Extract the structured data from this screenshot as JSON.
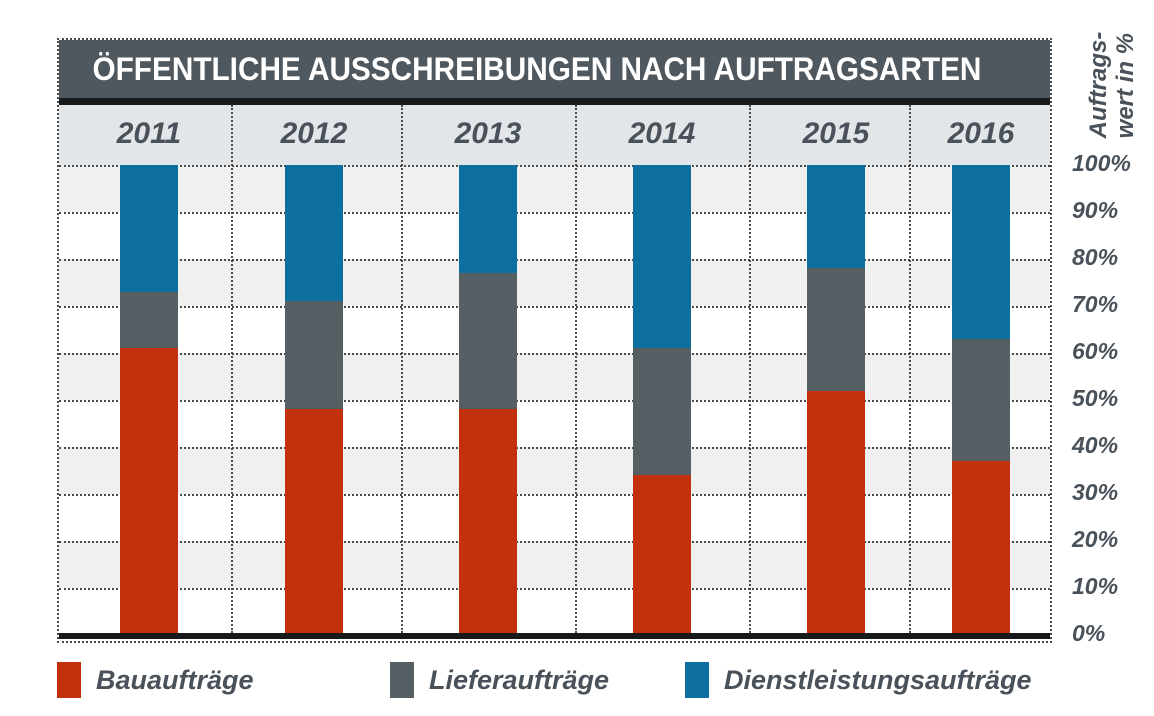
{
  "chart_data": {
    "type": "bar",
    "stacked": true,
    "title": "ÖFFENTLICHE AUSSCHREIBUNGEN NACH AUFTRAGSARTEN",
    "categories": [
      "2011",
      "2012",
      "2013",
      "2014",
      "2015",
      "2016"
    ],
    "series": [
      {
        "name": "Bauaufträge",
        "color": "#c1310e",
        "values": [
          61,
          48,
          48,
          34,
          52,
          37
        ]
      },
      {
        "name": "Lieferaufträge",
        "color": "#555f64",
        "values": [
          12,
          23,
          29,
          27,
          26,
          26
        ]
      },
      {
        "name": "Dienstleistungsaufträge",
        "color": "#0c6f9e",
        "values": [
          27,
          29,
          23,
          39,
          22,
          37
        ]
      }
    ],
    "ylabel": "Auftragswert in %",
    "ylabel_lines": [
      "Auftrags-",
      "wert in %"
    ],
    "yticks": [
      "100%",
      "90%",
      "80%",
      "70%",
      "60%",
      "50%",
      "40%",
      "30%",
      "20%",
      "10%",
      "0%"
    ],
    "ylim": [
      0,
      100
    ],
    "grid": "dotted horizontal lines every 10% and dotted vertical column separators",
    "legend_position": "bottom"
  },
  "colors": {
    "header_bg": "#4f585e",
    "years_band_bg": "#e3e6e8",
    "plot_stripe": "#f0f0f1",
    "text": "#49525a",
    "axis_black": "#17191b"
  }
}
